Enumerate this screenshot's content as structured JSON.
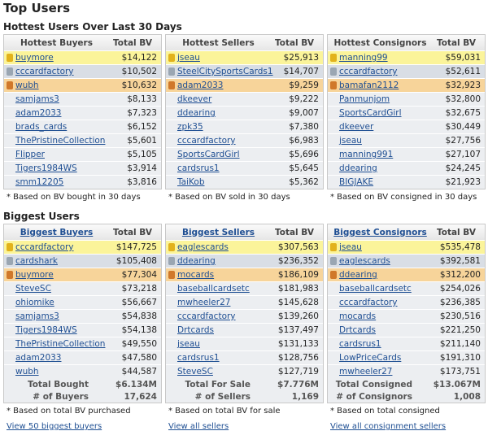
{
  "title": "Top Users",
  "sections": [
    {
      "heading": "Hottest Users Over Last 30 Days",
      "tables": [
        {
          "headers": [
            "Hottest Buyers",
            "Total BV"
          ],
          "rows": [
            [
              "buymore",
              "$14,122"
            ],
            [
              "cccardfactory",
              "$10,502"
            ],
            [
              "wubh",
              "$10,632"
            ],
            [
              "samjams3",
              "$8,133"
            ],
            [
              "adam2033",
              "$7,323"
            ],
            [
              "brads_cards",
              "$6,152"
            ],
            [
              "ThePristineCollection",
              "$5,601"
            ],
            [
              "Flipper",
              "$5,105"
            ],
            [
              "Tigers1984WS",
              "$3,914"
            ],
            [
              "smm12205",
              "$3,816"
            ]
          ],
          "note": "* Based on BV bought in 30 days"
        },
        {
          "headers": [
            "Hottest Sellers",
            "Total BV"
          ],
          "rows": [
            [
              "jseau",
              "$25,913"
            ],
            [
              "SteelCitySportsCards1",
              "$14,707"
            ],
            [
              "adam2033",
              "$9,259"
            ],
            [
              "dkeever",
              "$9,222"
            ],
            [
              "ddearing",
              "$9,007"
            ],
            [
              "zpk35",
              "$7,380"
            ],
            [
              "cccardfactory",
              "$6,983"
            ],
            [
              "SportsCardGirl",
              "$5,696"
            ],
            [
              "cardsrus1",
              "$5,645"
            ],
            [
              "TaiKob",
              "$5,362"
            ]
          ],
          "note": "* Based on BV sold in 30 days"
        },
        {
          "headers": [
            "Hottest Consignors",
            "Total BV"
          ],
          "rows": [
            [
              "manning99",
              "$59,031"
            ],
            [
              "cccardfactory",
              "$52,611"
            ],
            [
              "bamafan2112",
              "$32,923"
            ],
            [
              "Panmunjom",
              "$32,800"
            ],
            [
              "SportsCardGirl",
              "$32,675"
            ],
            [
              "dkeever",
              "$30,449"
            ],
            [
              "jseau",
              "$27,756"
            ],
            [
              "manning991",
              "$27,107"
            ],
            [
              "ddearing",
              "$24,245"
            ],
            [
              "BIGJAKE",
              "$21,923"
            ]
          ],
          "note": "* Based on BV consigned in 30 days"
        }
      ]
    },
    {
      "heading": "Biggest Users",
      "tables": [
        {
          "headers": [
            "Biggest Buyers",
            "Total BV"
          ],
          "rows": [
            [
              "cccardfactory",
              "$147,725"
            ],
            [
              "cardshark",
              "$105,408"
            ],
            [
              "buymore",
              "$77,304"
            ],
            [
              "SteveSC",
              "$73,218"
            ],
            [
              "ohiomike",
              "$56,667"
            ],
            [
              "samjams3",
              "$54,838"
            ],
            [
              "Tigers1984WS",
              "$54,138"
            ],
            [
              "ThePristineCollection",
              "$49,550"
            ],
            [
              "adam2033",
              "$47,580"
            ],
            [
              "wubh",
              "$44,587"
            ]
          ],
          "totals": [
            [
              "Total Bought",
              "$6.134M"
            ],
            [
              "# of Buyers",
              "17,624"
            ]
          ],
          "note": "* Based on total BV purchased",
          "link": "View 50 biggest buyers"
        },
        {
          "headers": [
            "Biggest Sellers",
            "Total BV"
          ],
          "rows": [
            [
              "eaglescards",
              "$307,563"
            ],
            [
              "ddearing",
              "$236,352"
            ],
            [
              "mocards",
              "$186,109"
            ],
            [
              "baseballcardsetc",
              "$181,983"
            ],
            [
              "mwheeler27",
              "$145,628"
            ],
            [
              "cccardfactory",
              "$139,260"
            ],
            [
              "Drtcards",
              "$137,497"
            ],
            [
              "jseau",
              "$131,133"
            ],
            [
              "cardsrus1",
              "$128,756"
            ],
            [
              "SteveSC",
              "$127,719"
            ]
          ],
          "totals": [
            [
              "Total For Sale",
              "$7.776M"
            ],
            [
              "# of Sellers",
              "1,169"
            ]
          ],
          "note": "* Based on total BV for sale",
          "link": "View all sellers"
        },
        {
          "headers": [
            "Biggest Consignors",
            "Total BV"
          ],
          "rows": [
            [
              "jseau",
              "$535,478"
            ],
            [
              "eaglescards",
              "$392,581"
            ],
            [
              "ddearing",
              "$312,200"
            ],
            [
              "baseballcardsetc",
              "$254,026"
            ],
            [
              "cccardfactory",
              "$236,385"
            ],
            [
              "mocards",
              "$230,516"
            ],
            [
              "Drtcards",
              "$221,250"
            ],
            [
              "cardsrus1",
              "$211,140"
            ],
            [
              "LowPriceCards",
              "$191,310"
            ],
            [
              "mwheeler27",
              "$173,751"
            ]
          ],
          "totals": [
            [
              "Total Consigned",
              "$13.067M"
            ],
            [
              "# of Consignors",
              "1,008"
            ]
          ],
          "note": "* Based on total consigned",
          "link": "View all consignment sellers"
        }
      ]
    }
  ]
}
